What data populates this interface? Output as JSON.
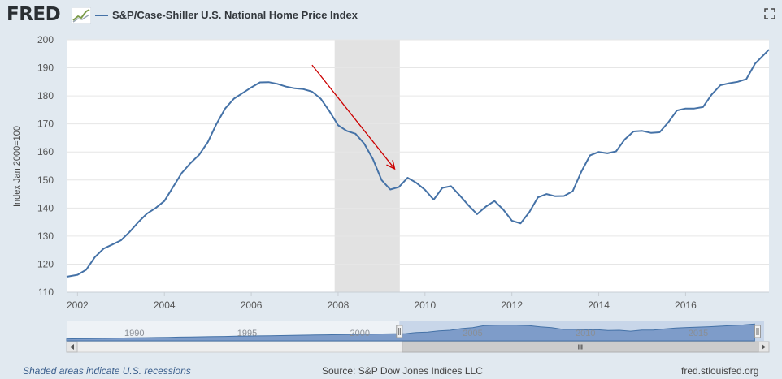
{
  "header": {
    "logo_text": "FRED",
    "series_title": "S&P/Case-Shiller U.S. National Home Price Index",
    "icons": [
      "fred-logo-graph-icon",
      "expand-icon"
    ]
  },
  "colors": {
    "series_line": "#4572a7",
    "recession_shade": "#e2e2e2",
    "annotation_arrow": "#cc0000",
    "navigator_fill": "#7e9cc9",
    "background": "#e1e9f0"
  },
  "chart_data": {
    "type": "line",
    "title": "S&P/Case-Shiller U.S. National Home Price Index",
    "ylabel": "Index Jan 2000=100",
    "xlabel": "",
    "xlim": [
      2001.75,
      2017.92
    ],
    "ylim": [
      110,
      200
    ],
    "y_ticks": [
      110,
      120,
      130,
      140,
      150,
      160,
      170,
      180,
      190,
      200
    ],
    "y_tick_labels": [
      "110",
      "120",
      "130",
      "140",
      "150",
      "160",
      "170",
      "180",
      "190",
      "200"
    ],
    "x_ticks": [
      2002,
      2004,
      2006,
      2008,
      2010,
      2012,
      2014,
      2016
    ],
    "x_tick_labels": [
      "2002",
      "2004",
      "2006",
      "2008",
      "2010",
      "2012",
      "2014",
      "2016"
    ],
    "grid": "horizontal",
    "recessions": [
      [
        2007.92,
        2009.42
      ]
    ],
    "annotation": {
      "type": "arrow",
      "from": [
        2007.4,
        191
      ],
      "to": [
        2009.3,
        154
      ]
    },
    "series": [
      {
        "name": "S&P/Case-Shiller U.S. National Home Price Index",
        "x": [
          2001.75,
          2002.0,
          2002.2,
          2002.4,
          2002.6,
          2002.8,
          2003.0,
          2003.2,
          2003.4,
          2003.6,
          2003.8,
          2004.0,
          2004.2,
          2004.4,
          2004.6,
          2004.8,
          2005.0,
          2005.2,
          2005.4,
          2005.6,
          2005.8,
          2006.0,
          2006.2,
          2006.4,
          2006.6,
          2006.8,
          2007.0,
          2007.2,
          2007.4,
          2007.6,
          2007.8,
          2008.0,
          2008.2,
          2008.4,
          2008.6,
          2008.8,
          2009.0,
          2009.2,
          2009.4,
          2009.6,
          2009.8,
          2010.0,
          2010.2,
          2010.4,
          2010.6,
          2010.8,
          2011.0,
          2011.2,
          2011.4,
          2011.6,
          2011.8,
          2012.0,
          2012.2,
          2012.4,
          2012.6,
          2012.8,
          2013.0,
          2013.2,
          2013.4,
          2013.6,
          2013.8,
          2014.0,
          2014.2,
          2014.4,
          2014.6,
          2014.8,
          2015.0,
          2015.2,
          2015.4,
          2015.6,
          2015.8,
          2016.0,
          2016.2,
          2016.4,
          2016.6,
          2016.8,
          2017.0,
          2017.2,
          2017.4,
          2017.6,
          2017.92
        ],
        "values": [
          115.5,
          116.2,
          118,
          122.5,
          125.5,
          127,
          128.5,
          131.5,
          135,
          138,
          140,
          142.5,
          147.5,
          152.5,
          156,
          159,
          163.5,
          170,
          175.5,
          179,
          181,
          183,
          184.8,
          184.9,
          184.3,
          183.3,
          182.7,
          182.4,
          181.5,
          179,
          174.5,
          169.5,
          167.5,
          166.5,
          163,
          157.5,
          150,
          146.6,
          147.5,
          150.8,
          149,
          146.5,
          143,
          147.2,
          147.8,
          144.5,
          141,
          137.8,
          140.5,
          142.5,
          139.5,
          135.5,
          134.5,
          138.5,
          143.8,
          145,
          144.2,
          144.3,
          146,
          153,
          158.8,
          160,
          159.5,
          160.2,
          164.5,
          167.3,
          167.5,
          166.8,
          167,
          170.5,
          174.8,
          175.5,
          175.5,
          176,
          180.5,
          183.8,
          184.5,
          185,
          186,
          191.5,
          196.5
        ]
      }
    ],
    "navigator": {
      "labels": [
        "1990",
        "1995",
        "2000",
        "2005",
        "2010",
        "2015"
      ],
      "range": [
        1987,
        2017.92
      ],
      "selected": [
        2001.75,
        2017.92
      ]
    }
  },
  "footer": {
    "note": "Shaded areas indicate U.S. recessions",
    "source": "Source: S&P Dow Jones Indices LLC",
    "site": "fred.stlouisfed.org"
  }
}
